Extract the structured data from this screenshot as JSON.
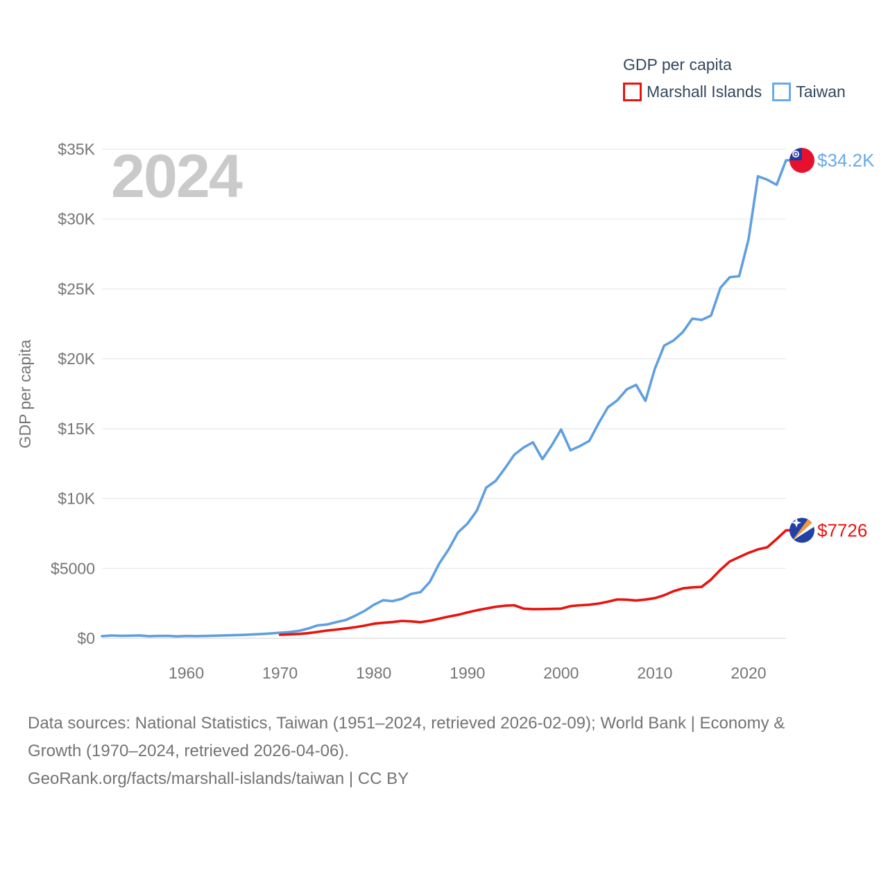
{
  "watermark": "2024",
  "legend": {
    "title": "GDP per capita",
    "items": [
      {
        "label": "Marshall Islands",
        "color": "#e8140c"
      },
      {
        "label": "Taiwan",
        "color": "#6aa9e9"
      }
    ]
  },
  "chart_data": {
    "type": "line",
    "title": "GDP per capita",
    "xlabel": "",
    "ylabel": "GDP per capita",
    "xlim": [
      1951,
      2024
    ],
    "ylim": [
      0,
      35000
    ],
    "grid": true,
    "legend_position": "top-right",
    "yticks": [
      {
        "label": "$0",
        "value": 0
      },
      {
        "label": "$5000",
        "value": 5000
      },
      {
        "label": "$10K",
        "value": 10000
      },
      {
        "label": "$15K",
        "value": 15000
      },
      {
        "label": "$20K",
        "value": 20000
      },
      {
        "label": "$25K",
        "value": 25000
      },
      {
        "label": "$30K",
        "value": 30000
      },
      {
        "label": "$35K",
        "value": 35000
      }
    ],
    "xticks": [
      {
        "label": "1960",
        "value": 1960
      },
      {
        "label": "1970",
        "value": 1970
      },
      {
        "label": "1980",
        "value": 1980
      },
      {
        "label": "1990",
        "value": 1990
      },
      {
        "label": "2000",
        "value": 2000
      },
      {
        "label": "2010",
        "value": 2010
      },
      {
        "label": "2020",
        "value": 2020
      }
    ],
    "series": [
      {
        "name": "Taiwan",
        "color": "#5f9fdf",
        "label_color": "#6aa9e9",
        "flag": "taiwan",
        "end_label": "$34.2K",
        "start_year": 1951,
        "values": [
          150,
          200,
          175,
          185,
          205,
          145,
          165,
          175,
          135,
          165,
          155,
          165,
          185,
          205,
          220,
          240,
          270,
          305,
          345,
          395,
          445,
          525,
          695,
          920,
          985,
          1155,
          1300,
          1605,
          1950,
          2390,
          2720,
          2655,
          2825,
          3170,
          3300,
          4040,
          5350,
          6370,
          7580,
          8200,
          9130,
          10780,
          11250,
          12160,
          13130,
          13650,
          14020,
          12820,
          13800,
          14940,
          13450,
          13750,
          14120,
          15390,
          16530,
          17030,
          17810,
          18130,
          16990,
          19280,
          20940,
          21310,
          21920,
          22870,
          22780,
          23090,
          25080,
          25840,
          25910,
          28550,
          33060,
          32810,
          32450,
          34200
        ]
      },
      {
        "name": "Marshall Islands",
        "color": "#e8130c",
        "label_color": "#e8130c",
        "flag": "marshall-islands",
        "end_label": "$7726",
        "start_year": 1970,
        "values": [
          250,
          280,
          310,
          360,
          450,
          550,
          620,
          700,
          790,
          900,
          1040,
          1105,
          1155,
          1240,
          1205,
          1145,
          1255,
          1405,
          1550,
          1680,
          1850,
          2000,
          2130,
          2250,
          2330,
          2360,
          2120,
          2080,
          2090,
          2100,
          2120,
          2300,
          2360,
          2400,
          2480,
          2620,
          2780,
          2760,
          2700,
          2770,
          2870,
          3080,
          3370,
          3570,
          3640,
          3680,
          4200,
          4900,
          5500,
          5810,
          6110,
          6360,
          6510,
          7100,
          7726
        ]
      }
    ]
  },
  "colors": {
    "grid": "#eaeaea",
    "baseline": "#dadada",
    "axis_text": "#757575",
    "taiwan_flag_red": "#e8112d",
    "taiwan_flag_blue": "#1f3aa0",
    "marshall_flag_blue": "#2141a5",
    "marshall_flag_orange": "#f0983a"
  },
  "footer": {
    "lines": [
      "Data sources: National Statistics, Taiwan (1951–2024, retrieved 2026-02-09); World Bank | Economy &",
      "Growth (1970–2024, retrieved 2026-04-06).",
      "GeoRank.org/facts/marshall-islands/taiwan | CC BY"
    ]
  }
}
